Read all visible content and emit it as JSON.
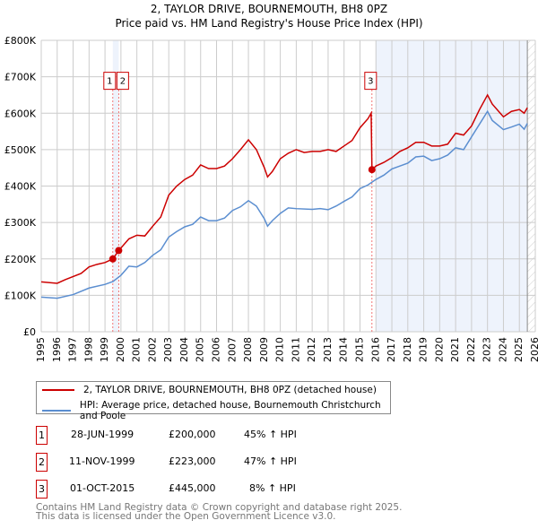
{
  "chart_data": {
    "type": "line",
    "title": "2, TAYLOR DRIVE, BOURNEMOUTH, BH8 0PZ",
    "subtitle": "Price paid vs. HM Land Registry's House Price Index (HPI)",
    "xlim": [
      1995,
      2026
    ],
    "ylim": [
      0,
      800000
    ],
    "x_ticks": [
      "1995",
      "1996",
      "1997",
      "1998",
      "1999",
      "2000",
      "2001",
      "2002",
      "2003",
      "2004",
      "2005",
      "2006",
      "2007",
      "2008",
      "2009",
      "2010",
      "2011",
      "2012",
      "2013",
      "2014",
      "2015",
      "2016",
      "2017",
      "2018",
      "2019",
      "2020",
      "2021",
      "2022",
      "2023",
      "2024",
      "2025",
      "2026"
    ],
    "y_ticks": [
      {
        "v": 0,
        "label": "£0"
      },
      {
        "v": 100000,
        "label": "£100K"
      },
      {
        "v": 200000,
        "label": "£200K"
      },
      {
        "v": 300000,
        "label": "£300K"
      },
      {
        "v": 400000,
        "label": "£400K"
      },
      {
        "v": 500000,
        "label": "£500K"
      },
      {
        "v": 600000,
        "label": "£600K"
      },
      {
        "v": 700000,
        "label": "£700K"
      },
      {
        "v": 800000,
        "label": "£800K"
      }
    ],
    "grid": true,
    "series": [
      {
        "name": "2, TAYLOR DRIVE, BOURNEMOUTH, BH8 0PZ (detached house)",
        "color": "#cc0000",
        "x": [
          1995,
          1996,
          1996.5,
          1997.5,
          1998,
          1998.5,
          1999,
          1999.49,
          1999.86,
          2000.5,
          2001,
          2001.5,
          2002,
          2002.5,
          2003,
          2003.5,
          2004,
          2004.5,
          2005,
          2005.5,
          2006,
          2006.5,
          2007,
          2007.5,
          2008,
          2008.5,
          2009,
          2009.2,
          2009.5,
          2010,
          2010.5,
          2011,
          2011.5,
          2012,
          2012.5,
          2013,
          2013.5,
          2014,
          2014.5,
          2015,
          2015.5,
          2015.7,
          2015.75,
          2016,
          2016.5,
          2017,
          2017.5,
          2018,
          2018.5,
          2019,
          2019.5,
          2020,
          2020.5,
          2021,
          2021.5,
          2022,
          2022.5,
          2023,
          2023.3,
          2024,
          2024.5,
          2025,
          2025.3,
          2025.5
        ],
        "y": [
          137000,
          133000,
          143000,
          160000,
          178000,
          185000,
          190000,
          200000,
          223000,
          255000,
          265000,
          263000,
          290000,
          315000,
          375000,
          400000,
          418000,
          430000,
          458000,
          448000,
          448000,
          455000,
          475000,
          500000,
          527000,
          500000,
          450000,
          425000,
          440000,
          475000,
          490000,
          500000,
          492000,
          495000,
          495000,
          500000,
          495000,
          510000,
          525000,
          560000,
          585000,
          600000,
          445000,
          455000,
          465000,
          478000,
          495000,
          505000,
          520000,
          520000,
          510000,
          510000,
          515000,
          545000,
          540000,
          565000,
          610000,
          650000,
          625000,
          590000,
          605000,
          610000,
          600000,
          615000
        ]
      },
      {
        "name": "HPI: Average price, detached house, Bournemouth Christchurch and Poole",
        "color": "#5b8ed0",
        "x": [
          1995,
          1996,
          1997,
          1998,
          1999,
          1999.5,
          2000,
          2000.5,
          2001,
          2001.5,
          2002,
          2002.5,
          2003,
          2003.5,
          2004,
          2004.5,
          2005,
          2005.5,
          2006,
          2006.5,
          2007,
          2007.5,
          2008,
          2008.5,
          2009,
          2009.2,
          2009.5,
          2010,
          2010.5,
          2011,
          2012,
          2012.5,
          2013,
          2013.5,
          2014,
          2014.5,
          2015,
          2015.5,
          2016,
          2016.5,
          2017,
          2017.5,
          2018,
          2018.5,
          2019,
          2019.5,
          2020,
          2020.5,
          2021,
          2021.5,
          2022,
          2022.5,
          2023,
          2023.3,
          2024,
          2024.5,
          2025,
          2025.3,
          2025.5
        ],
        "y": [
          95000,
          92000,
          102000,
          120000,
          130000,
          138000,
          155000,
          180000,
          178000,
          190000,
          210000,
          225000,
          260000,
          275000,
          288000,
          295000,
          315000,
          305000,
          305000,
          312000,
          333000,
          343000,
          360000,
          345000,
          310000,
          290000,
          305000,
          325000,
          340000,
          338000,
          336000,
          338000,
          335000,
          345000,
          358000,
          370000,
          393000,
          403000,
          418000,
          430000,
          447000,
          455000,
          463000,
          480000,
          482000,
          470000,
          475000,
          485000,
          505000,
          500000,
          535000,
          570000,
          605000,
          580000,
          555000,
          562000,
          570000,
          556000,
          572000
        ]
      }
    ],
    "sales": [
      {
        "id": "1",
        "x": 1999.49,
        "price": 200000,
        "date": "28-JUN-1999",
        "price_label": "£200,000",
        "hpi": "45% ↑ HPI"
      },
      {
        "id": "2",
        "x": 1999.86,
        "price": 223000,
        "date": "11-NOV-1999",
        "price_label": "£223,000",
        "hpi": "47% ↑ HPI"
      },
      {
        "id": "3",
        "x": 2015.75,
        "price": 445000,
        "date": "01-OCT-2015",
        "price_label": "£445,000",
        "hpi": "8% ↑ HPI"
      }
    ],
    "shaded_from": 2016,
    "hatched_from": 2025.5
  },
  "legend": {
    "red": "2, TAYLOR DRIVE, BOURNEMOUTH, BH8 0PZ (detached house)",
    "blue": "HPI: Average price, detached house, Bournemouth Christchurch and Poole"
  },
  "footer": {
    "line1": "Contains HM Land Registry data © Crown copyright and database right 2025.",
    "line2": "This data is licensed under the Open Government Licence v3.0."
  }
}
